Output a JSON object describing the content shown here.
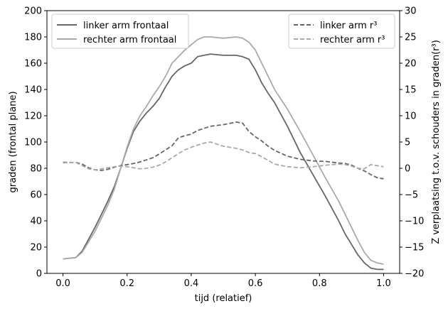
{
  "chart_data": {
    "type": "line",
    "xlabel": "tijd (relatief)",
    "ylabel": "graden (frontal plane)",
    "y2label": "Z verplaatsing t.o.v. schouders in graden(r³)",
    "xlim": [
      -0.05,
      1.05
    ],
    "ylim": [
      0,
      200
    ],
    "y2lim": [
      -20,
      30
    ],
    "xticks": [
      "0.0",
      "0.2",
      "0.4",
      "0.6",
      "0.8",
      "1.0"
    ],
    "xtick_values": [
      0,
      0.2,
      0.4,
      0.6,
      0.8,
      1.0
    ],
    "yticks": [
      "0",
      "20",
      "40",
      "60",
      "80",
      "100",
      "120",
      "140",
      "160",
      "180",
      "200"
    ],
    "ytick_values": [
      0,
      20,
      40,
      60,
      80,
      100,
      120,
      140,
      160,
      180,
      200
    ],
    "y2ticks": [
      "−20",
      "−15",
      "−10",
      "−5",
      "0",
      "5",
      "10",
      "15",
      "20",
      "25",
      "30"
    ],
    "y2tick_values": [
      -20,
      -15,
      -10,
      -5,
      0,
      5,
      10,
      15,
      20,
      25,
      30
    ],
    "grid": false,
    "legend_left_placement": "upper-left",
    "legend_right_placement": "upper-right",
    "series": [
      {
        "name": "linker arm frontaal",
        "axis": "left",
        "color": "#666666",
        "dash": "solid",
        "x": [
          0.0,
          0.04,
          0.06,
          0.08,
          0.1,
          0.12,
          0.14,
          0.16,
          0.18,
          0.2,
          0.22,
          0.24,
          0.26,
          0.28,
          0.3,
          0.32,
          0.34,
          0.36,
          0.38,
          0.4,
          0.42,
          0.44,
          0.46,
          0.5,
          0.54,
          0.56,
          0.58,
          0.6,
          0.62,
          0.64,
          0.66,
          0.7,
          0.74,
          0.78,
          0.82,
          0.86,
          0.88,
          0.9,
          0.92,
          0.94,
          0.96,
          0.98,
          1.0
        ],
        "y": [
          11,
          12,
          17,
          26,
          35,
          45,
          55,
          66,
          80,
          95,
          108,
          116,
          122,
          127,
          133,
          142,
          150,
          155,
          158,
          160,
          165,
          166,
          167,
          166,
          166,
          165,
          163,
          155,
          145,
          137,
          130,
          112,
          92,
          75,
          58,
          40,
          30,
          22,
          14,
          8,
          4,
          3,
          3
        ]
      },
      {
        "name": "rechter arm frontaal",
        "axis": "left",
        "color": "#aaaaaa",
        "dash": "solid",
        "x": [
          0.0,
          0.04,
          0.06,
          0.08,
          0.1,
          0.12,
          0.14,
          0.16,
          0.18,
          0.2,
          0.22,
          0.24,
          0.26,
          0.28,
          0.3,
          0.32,
          0.34,
          0.36,
          0.38,
          0.4,
          0.42,
          0.44,
          0.46,
          0.5,
          0.54,
          0.56,
          0.58,
          0.6,
          0.62,
          0.64,
          0.66,
          0.7,
          0.74,
          0.78,
          0.82,
          0.86,
          0.88,
          0.9,
          0.92,
          0.94,
          0.96,
          0.98,
          1.0
        ],
        "y": [
          11,
          12,
          16,
          24,
          32,
          42,
          52,
          64,
          80,
          96,
          110,
          120,
          127,
          135,
          142,
          150,
          160,
          165,
          170,
          174,
          178,
          180,
          180,
          179,
          180,
          179,
          176,
          170,
          160,
          150,
          140,
          125,
          108,
          90,
          72,
          55,
          45,
          35,
          25,
          16,
          10,
          8,
          7
        ]
      },
      {
        "name": "linker arm r³",
        "axis": "right",
        "color": "#666666",
        "dash": "dashed",
        "x": [
          0.0,
          0.04,
          0.06,
          0.08,
          0.1,
          0.12,
          0.14,
          0.16,
          0.18,
          0.2,
          0.22,
          0.24,
          0.26,
          0.28,
          0.3,
          0.32,
          0.34,
          0.36,
          0.38,
          0.4,
          0.42,
          0.44,
          0.46,
          0.5,
          0.54,
          0.56,
          0.58,
          0.6,
          0.62,
          0.64,
          0.66,
          0.7,
          0.74,
          0.78,
          0.82,
          0.86,
          0.88,
          0.9,
          0.92,
          0.94,
          0.96,
          0.98,
          1.0
        ],
        "y": [
          1.1,
          1.1,
          0.8,
          0.1,
          -0.3,
          -0.4,
          -0.2,
          0.2,
          0.5,
          0.7,
          0.9,
          1.2,
          1.6,
          2.0,
          2.7,
          3.5,
          4.3,
          5.8,
          6.2,
          6.5,
          7.2,
          7.6,
          8.0,
          8.3,
          8.8,
          8.6,
          7.0,
          6.0,
          5.2,
          4.2,
          3.4,
          2.3,
          1.7,
          1.4,
          1.3,
          1.0,
          0.9,
          0.6,
          0.0,
          -0.5,
          -1.2,
          -1.8,
          -2.0
        ]
      },
      {
        "name": "rechter arm r³",
        "axis": "right",
        "color": "#aaaaaa",
        "dash": "dashed",
        "x": [
          0.0,
          0.04,
          0.06,
          0.08,
          0.1,
          0.12,
          0.14,
          0.16,
          0.18,
          0.2,
          0.22,
          0.24,
          0.26,
          0.28,
          0.3,
          0.32,
          0.34,
          0.36,
          0.38,
          0.4,
          0.42,
          0.44,
          0.46,
          0.5,
          0.54,
          0.56,
          0.58,
          0.6,
          0.62,
          0.64,
          0.66,
          0.7,
          0.74,
          0.78,
          0.82,
          0.86,
          0.88,
          0.9,
          0.92,
          0.94,
          0.96,
          0.98,
          1.0
        ],
        "y": [
          1.2,
          1.1,
          0.5,
          -0.1,
          -0.3,
          -0.1,
          0.1,
          0.3,
          0.4,
          0.3,
          0.1,
          -0.1,
          0.0,
          0.2,
          0.6,
          1.2,
          2.0,
          2.8,
          3.5,
          4.0,
          4.4,
          4.8,
          5.0,
          4.2,
          3.8,
          3.5,
          3.0,
          2.8,
          2.2,
          1.5,
          0.8,
          0.3,
          0.1,
          0.3,
          0.6,
          0.8,
          0.7,
          0.4,
          0.0,
          -0.1,
          0.7,
          0.5,
          0.3
        ]
      }
    ]
  }
}
